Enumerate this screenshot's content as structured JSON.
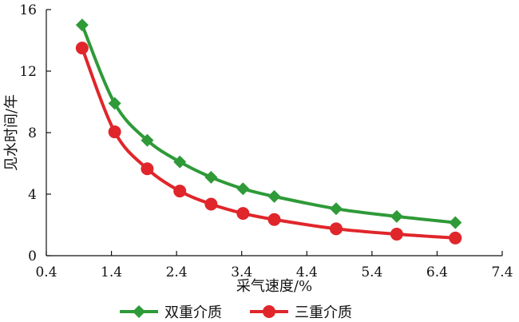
{
  "chart_data": {
    "type": "line",
    "title": "",
    "xlabel": "采气速度/%",
    "ylabel": "见水时间/年",
    "xlim": [
      0.4,
      7.4
    ],
    "ylim": [
      0,
      16
    ],
    "xticks": [
      "0.4",
      "1.4",
      "2.4",
      "3.4",
      "4.4",
      "5.4",
      "6.4",
      "7.4"
    ],
    "yticks": [
      "0",
      "4",
      "8",
      "12",
      "16"
    ],
    "grid": false,
    "legend_position": "bottom",
    "series": [
      {
        "name": "双重介质",
        "color": "#2e9a38",
        "marker": "diamond",
        "x": [
          0.95,
          1.45,
          1.95,
          2.45,
          2.93,
          3.42,
          3.9,
          4.85,
          5.78,
          6.68
        ],
        "y": [
          15.0,
          9.9,
          7.5,
          6.1,
          5.1,
          4.35,
          3.85,
          3.05,
          2.55,
          2.15
        ]
      },
      {
        "name": "三重介质",
        "color": "#e0262b",
        "marker": "circle",
        "x": [
          0.95,
          1.45,
          1.95,
          2.45,
          2.93,
          3.42,
          3.9,
          4.85,
          5.78,
          6.68
        ],
        "y": [
          13.5,
          8.05,
          5.65,
          4.2,
          3.35,
          2.75,
          2.35,
          1.75,
          1.4,
          1.15
        ]
      }
    ]
  }
}
